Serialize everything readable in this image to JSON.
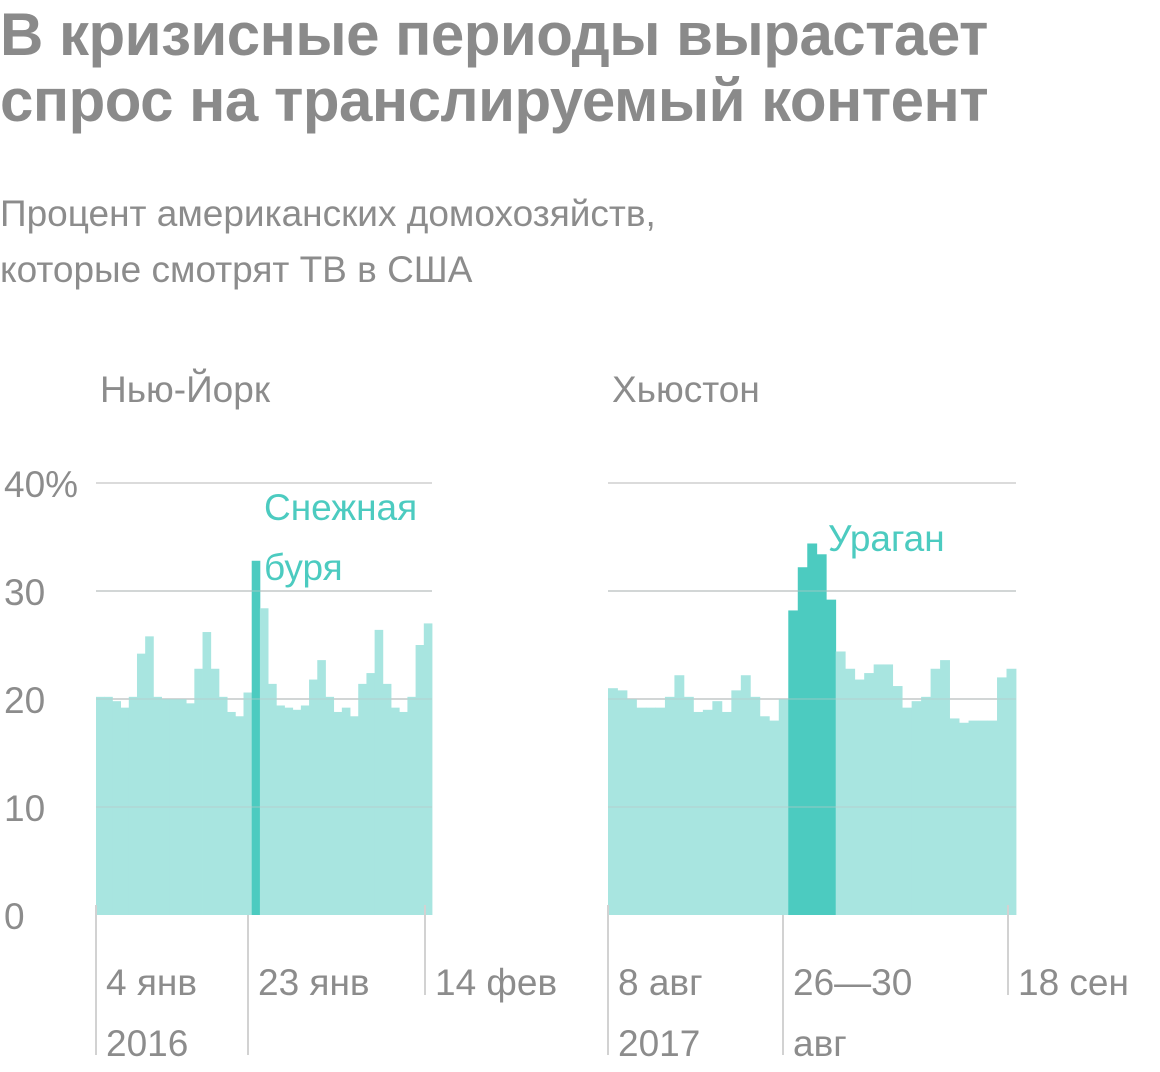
{
  "title": "В кризисные периоды вырастает спрос на транслируемый контент",
  "subtitle_line1": "Процент американских домохозяйств,",
  "subtitle_line2": "которые смотрят ТВ в США",
  "colors": {
    "bar": "#a8e5e0",
    "highlight": "#4ccbc0",
    "annotation": "#4ccbc0",
    "grid": "#cfcfcf",
    "text": "#8a8a8a"
  },
  "chart_data": [
    {
      "type": "bar",
      "title": "Нью-Йорк",
      "ylim": [
        0,
        40
      ],
      "yticks": [
        "0",
        "10",
        "20",
        "30",
        "40%"
      ],
      "ytick_values": [
        0,
        10,
        20,
        30,
        40
      ],
      "grid": true,
      "values": [
        20.2,
        20.2,
        19.8,
        19.2,
        20.2,
        24.2,
        25.8,
        20.2,
        20.0,
        20.0,
        20.0,
        19.6,
        22.8,
        26.2,
        22.8,
        20.2,
        18.8,
        18.4,
        20.6,
        32.8,
        28.4,
        21.4,
        19.4,
        19.2,
        19.0,
        19.4,
        21.8,
        23.6,
        20.2,
        18.8,
        19.2,
        18.4,
        21.4,
        22.4,
        26.4,
        21.4,
        19.2,
        18.8,
        20.2,
        25.0,
        27.0
      ],
      "highlight_index": [
        19
      ],
      "annotation": [
        "Снежная",
        "буря"
      ],
      "xticks": [
        {
          "index": 0,
          "line1": "4 янв",
          "line2": "2016"
        },
        {
          "index": 19,
          "line1": "23 янв",
          "line2": ""
        },
        {
          "index": 41,
          "line1": "14 фев",
          "line2": ""
        }
      ]
    },
    {
      "type": "bar",
      "title": "Хьюстон",
      "ylim": [
        0,
        40
      ],
      "grid": true,
      "values": [
        21.0,
        20.8,
        20.0,
        19.2,
        19.2,
        19.2,
        20.2,
        22.2,
        20.2,
        18.8,
        19.0,
        19.8,
        18.8,
        20.8,
        22.2,
        20.2,
        18.4,
        18.0,
        20.0,
        28.2,
        32.2,
        34.4,
        33.4,
        29.2,
        24.4,
        22.8,
        21.8,
        22.4,
        23.2,
        23.2,
        21.2,
        19.2,
        19.8,
        20.2,
        22.8,
        23.6,
        18.2,
        17.8,
        18.0,
        18.0,
        18.0,
        22.0,
        22.8
      ],
      "highlight_index": [
        19,
        20,
        21,
        22,
        23
      ],
      "annotation": [
        "Ураган"
      ],
      "xticks": [
        {
          "index": 0,
          "line1": "8 авг",
          "line2": "2017"
        },
        {
          "index": 19,
          "line1": "26—30",
          "line2": "авг"
        },
        {
          "index": 43,
          "line1": "18 сен",
          "line2": ""
        }
      ]
    }
  ]
}
